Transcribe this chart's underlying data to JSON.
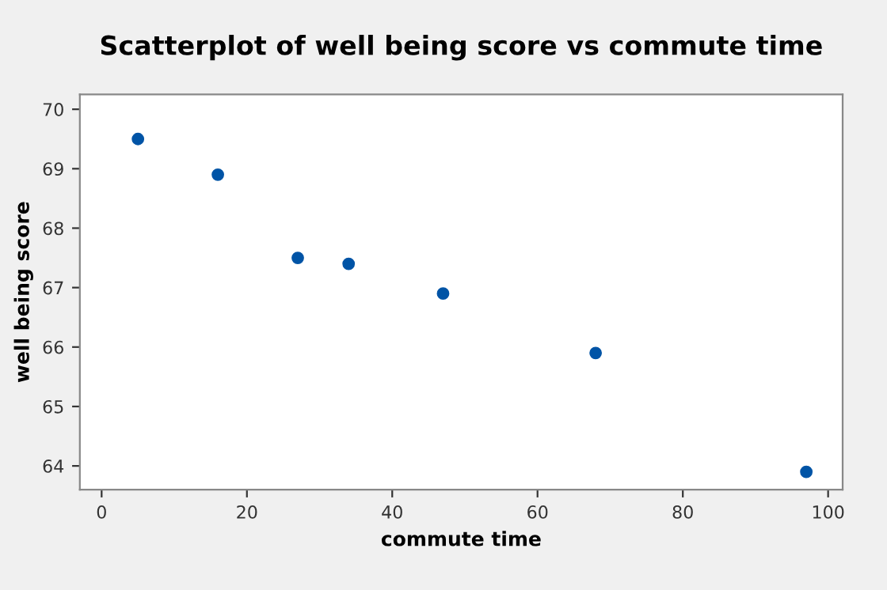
{
  "chart_data": {
    "type": "scatter",
    "title": "Scatterplot of well being score vs commute time",
    "xlabel": "commute time",
    "ylabel": "well being score",
    "x": [
      5,
      16,
      27,
      34,
      47,
      68,
      97
    ],
    "series": [
      {
        "color": "#0054a6",
        "values": [
          69.5,
          68.9,
          67.5,
          67.4,
          66.9,
          65.9,
          63.9
        ]
      }
    ],
    "xlim": [
      -3,
      102
    ],
    "xticks": [
      0,
      20,
      40,
      60,
      80,
      100
    ],
    "ylim": [
      63.6,
      70.25
    ],
    "yticks": [
      64,
      65,
      66,
      67,
      68,
      69,
      70
    ],
    "grid": false,
    "legend": false,
    "marker": "circle"
  }
}
